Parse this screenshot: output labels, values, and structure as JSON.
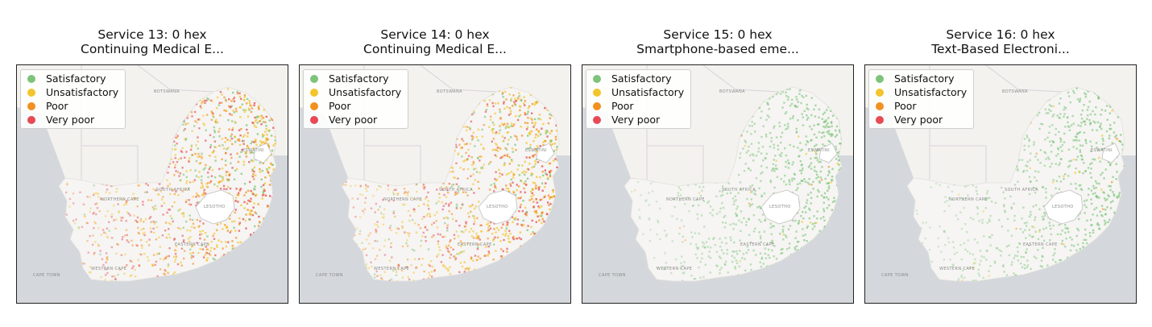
{
  "colors": {
    "satisfactory": "#7dc47a",
    "unsatisfactory": "#f3c42c",
    "poor": "#f29020",
    "very_poor": "#e64b55",
    "ocean": "#d4d8dc",
    "land": "#f6f5f3"
  },
  "legend": [
    "Satisfactory",
    "Unsatisfactory",
    "Poor",
    "Very poor"
  ],
  "panels": [
    {
      "line1": "Service 13: 0 hex",
      "line2": "Continuing Medical E...",
      "pattern": "mixed"
    },
    {
      "line1": "Service 14: 0 hex",
      "line2": "Continuing Medical E...",
      "pattern": "mixed"
    },
    {
      "line1": "Service 15: 0 hex",
      "line2": "Smartphone-based eme...",
      "pattern": "green"
    },
    {
      "line1": "Service 16: 0 hex",
      "line2": "Text-Based Electroni...",
      "pattern": "green"
    }
  ],
  "map_labels": {
    "botswana": "BOTSWANA",
    "south_africa": "SOUTH AFRICA",
    "lesotho": "LESOTHO",
    "eswatini": "ESWATINI",
    "northern_cape": "NORTHERN CAPE",
    "western_cape": "WESTERN CAPE",
    "eastern_cape": "EASTERN CAPE",
    "cape_town": "CAPE TOWN"
  }
}
